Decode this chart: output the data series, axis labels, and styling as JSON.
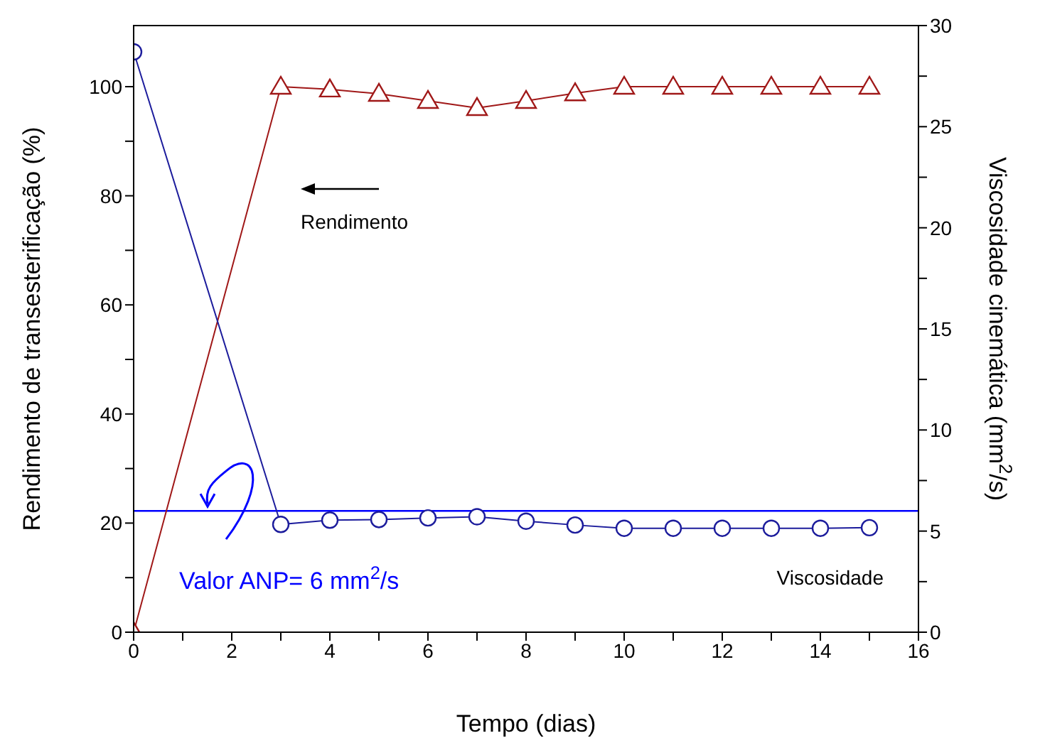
{
  "chart_data": {
    "type": "line",
    "xlabel": "Tempo (dias)",
    "ylabel": "Rendimento de transesterificação (%)",
    "y2label": "Viscosidade cinemática (mm$^{2}$/s)",
    "x": [
      0,
      3,
      4,
      5,
      6,
      7,
      8,
      9,
      10,
      11,
      12,
      13,
      14,
      15
    ],
    "series": [
      {
        "name": "Rendimento",
        "color": "#a01818",
        "marker": "triangle",
        "values": [
          0,
          100,
          99.5,
          98.7,
          97.4,
          96.1,
          97.4,
          98.8,
          100,
          100,
          100,
          100,
          100,
          100
        ]
      },
      {
        "name": "Viscosidade",
        "color": "#1c1c9c",
        "marker": "circle",
        "axis": "y2",
        "values": [
          28.7,
          5.33,
          5.54,
          5.57,
          5.65,
          5.71,
          5.49,
          5.3,
          5.14,
          5.14,
          5.14,
          5.14,
          5.14,
          5.17
        ]
      }
    ],
    "xlim": [
      0,
      16
    ],
    "xticks": [
      0,
      {
        "value": 1,
        "label": null
      },
      2,
      {
        "value": 3,
        "label": null
      },
      4,
      {
        "value": 5,
        "label": null
      },
      6,
      {
        "value": 7,
        "label": null
      },
      8,
      {
        "value": 9,
        "label": null
      },
      10,
      {
        "value": 11,
        "label": null
      },
      12,
      {
        "value": 13,
        "label": null
      },
      14,
      {
        "value": 15,
        "label": null
      },
      16
    ],
    "ylim": [
      0,
      111.2
    ],
    "yticks": [
      0,
      {
        "value": 10,
        "label": null
      },
      20,
      {
        "value": 30,
        "label": null
      },
      40,
      {
        "value": 50,
        "label": null
      },
      60,
      {
        "value": 70,
        "label": null
      },
      80,
      {
        "value": 90,
        "label": null
      },
      100
    ],
    "y2lim": [
      0,
      30
    ],
    "y2ticks": [
      0,
      {
        "value": 2.5,
        "label": null
      },
      5,
      {
        "value": 7.5,
        "label": null
      },
      10,
      {
        "value": 12.5,
        "label": null
      },
      15,
      {
        "value": 17.5,
        "label": null
      },
      20,
      {
        "value": 22.5,
        "label": null
      },
      25,
      {
        "value": 27.5,
        "label": null
      },
      30
    ],
    "ref_lines": [
      {
        "axis": "y2",
        "value": 6,
        "label": "Valor ANP= 6 mm$^{2}$/s",
        "color": "#0000ff"
      }
    ]
  }
}
